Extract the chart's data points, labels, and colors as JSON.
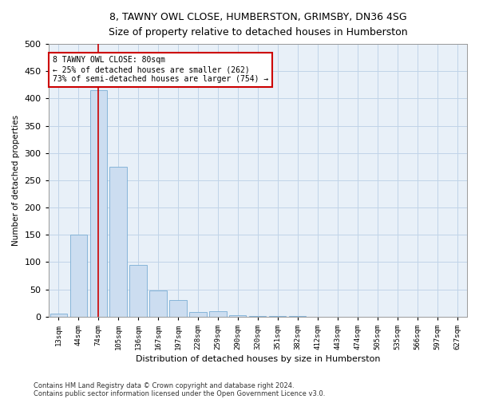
{
  "title1": "8, TAWNY OWL CLOSE, HUMBERSTON, GRIMSBY, DN36 4SG",
  "title2": "Size of property relative to detached houses in Humberston",
  "xlabel": "Distribution of detached houses by size in Humberston",
  "ylabel": "Number of detached properties",
  "footnote1": "Contains HM Land Registry data © Crown copyright and database right 2024.",
  "footnote2": "Contains public sector information licensed under the Open Government Licence v3.0.",
  "bar_color": "#ccddf0",
  "bar_edge_color": "#7aadd4",
  "grid_color": "#c0d4e8",
  "background_color": "#e8f0f8",
  "vline_color": "#cc0000",
  "annotation_box_color": "#cc0000",
  "categories": [
    "13sqm",
    "44sqm",
    "74sqm",
    "105sqm",
    "136sqm",
    "167sqm",
    "197sqm",
    "228sqm",
    "259sqm",
    "290sqm",
    "320sqm",
    "351sqm",
    "382sqm",
    "412sqm",
    "443sqm",
    "474sqm",
    "505sqm",
    "535sqm",
    "566sqm",
    "597sqm",
    "627sqm"
  ],
  "values": [
    5,
    150,
    415,
    275,
    95,
    48,
    30,
    8,
    10,
    3,
    1,
    1,
    1,
    0,
    0,
    0,
    0,
    0,
    0,
    0,
    0
  ],
  "vline_index": 2,
  "annotation_line1": "8 TAWNY OWL CLOSE: 80sqm",
  "annotation_line2": "← 25% of detached houses are smaller (262)",
  "annotation_line3": "73% of semi-detached houses are larger (754) →",
  "ylim": [
    0,
    500
  ],
  "yticks": [
    0,
    50,
    100,
    150,
    200,
    250,
    300,
    350,
    400,
    450,
    500
  ]
}
